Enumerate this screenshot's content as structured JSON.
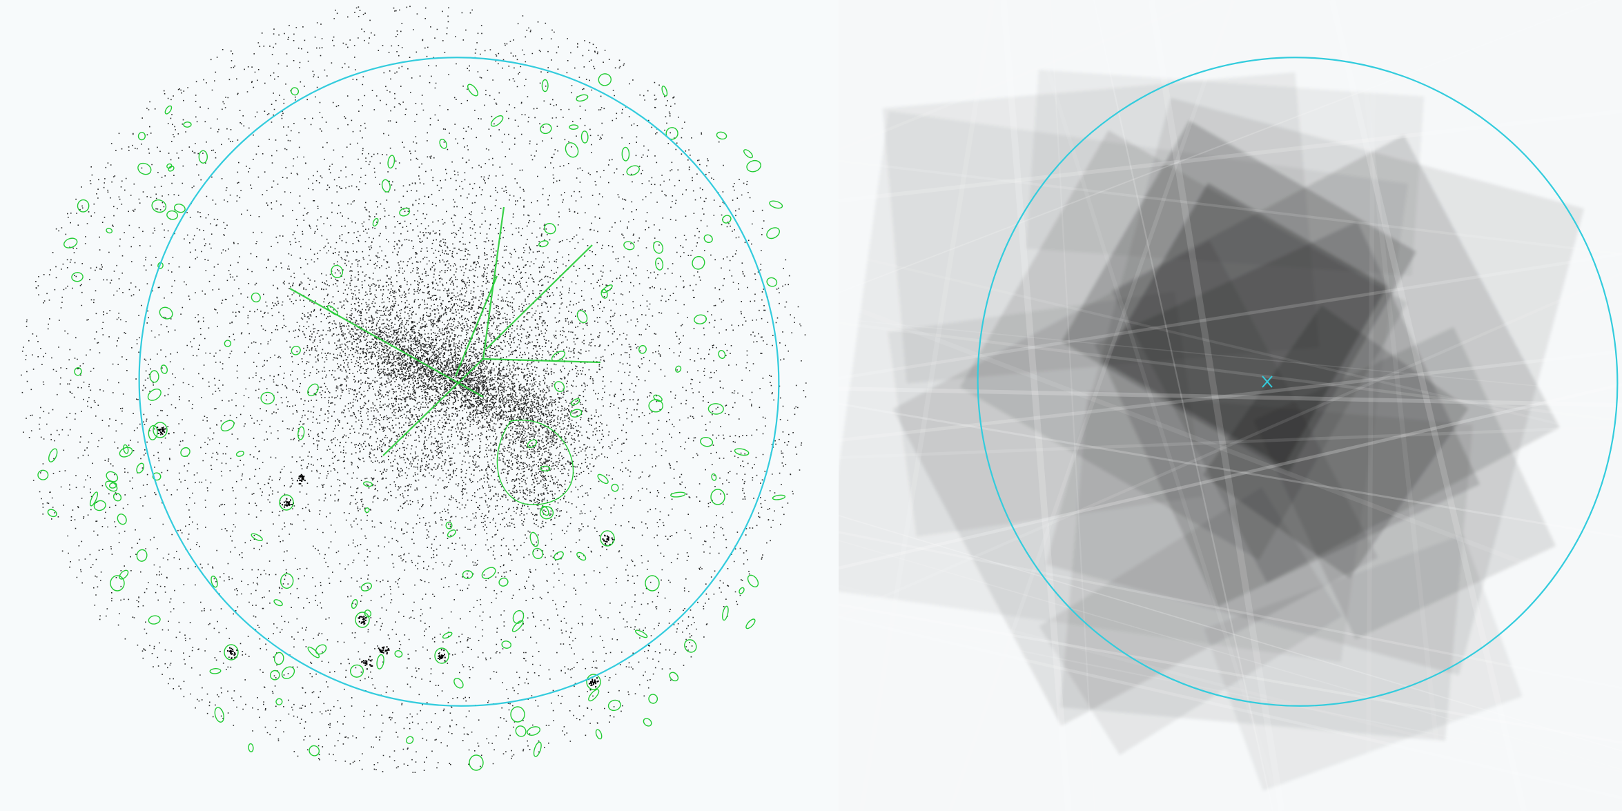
{
  "figure": {
    "panels": [
      {
        "id": "event-map",
        "content": "x-ray-event-scatter",
        "background": "#f7fafb",
        "event_color": "#000000",
        "contour_color": "#22cc33",
        "extraction_region_color": "#33ccdd"
      },
      {
        "id": "exposure-map",
        "content": "stacked-exposure-tiles",
        "background": "#f6f8f9",
        "tile_color": "#000000",
        "extraction_region_color": "#33ccdd",
        "center_marker": "x-cross"
      }
    ]
  }
}
